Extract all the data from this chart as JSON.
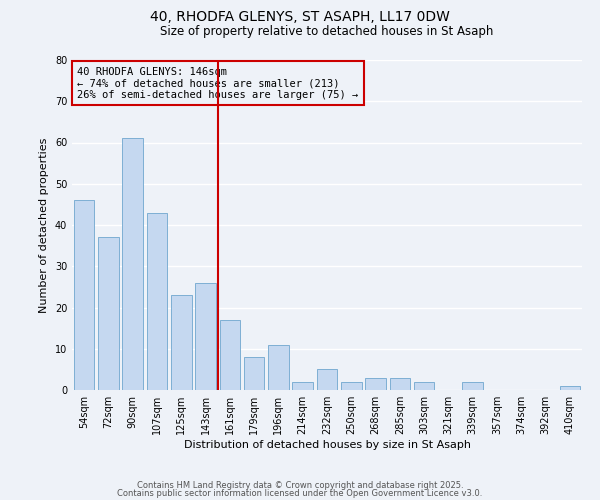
{
  "title_line1": "40, RHODFA GLENYS, ST ASAPH, LL17 0DW",
  "title_line2": "Size of property relative to detached houses in St Asaph",
  "xlabel": "Distribution of detached houses by size in St Asaph",
  "ylabel": "Number of detached properties",
  "categories": [
    "54sqm",
    "72sqm",
    "90sqm",
    "107sqm",
    "125sqm",
    "143sqm",
    "161sqm",
    "179sqm",
    "196sqm",
    "214sqm",
    "232sqm",
    "250sqm",
    "268sqm",
    "285sqm",
    "303sqm",
    "321sqm",
    "339sqm",
    "357sqm",
    "374sqm",
    "392sqm",
    "410sqm"
  ],
  "values": [
    46,
    37,
    61,
    43,
    23,
    26,
    17,
    8,
    11,
    2,
    5,
    2,
    3,
    3,
    2,
    0,
    2,
    0,
    0,
    0,
    1
  ],
  "bar_color": "#c5d8f0",
  "bar_edge_color": "#7eafd4",
  "vline_x_index": 5,
  "vline_color": "#cc0000",
  "annotation_lines": [
    "40 RHODFA GLENYS: 146sqm",
    "← 74% of detached houses are smaller (213)",
    "26% of semi-detached houses are larger (75) →"
  ],
  "annotation_box_edge": "#cc0000",
  "ylim": [
    0,
    80
  ],
  "yticks": [
    0,
    10,
    20,
    30,
    40,
    50,
    60,
    70,
    80
  ],
  "background_color": "#eef2f8",
  "grid_color": "#ffffff",
  "footer_line1": "Contains HM Land Registry data © Crown copyright and database right 2025.",
  "footer_line2": "Contains public sector information licensed under the Open Government Licence v3.0.",
  "title_fontsize": 10,
  "subtitle_fontsize": 8.5,
  "axis_label_fontsize": 8,
  "tick_fontsize": 7,
  "annotation_fontsize": 7.5,
  "footer_fontsize": 6
}
